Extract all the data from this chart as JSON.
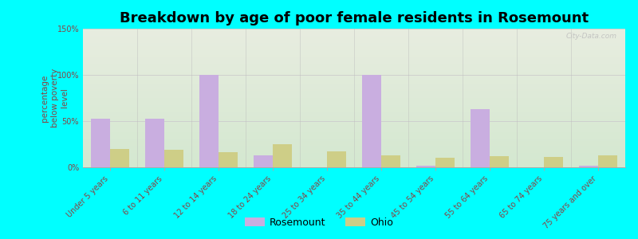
{
  "title": "Breakdown by age of poor female residents in Rosemount",
  "ylabel": "percentage\nbelow poverty\nlevel",
  "categories": [
    "Under 5 years",
    "6 to 11 years",
    "12 to 14 years",
    "18 to 24 years",
    "25 to 34 years",
    "35 to 44 years",
    "45 to 54 years",
    "55 to 64 years",
    "65 to 74 years",
    "75 years and over"
  ],
  "rosemount_values": [
    53,
    53,
    100,
    13,
    0,
    100,
    2,
    63,
    0,
    2
  ],
  "ohio_values": [
    20,
    19,
    16,
    25,
    17,
    13,
    10,
    12,
    11,
    13
  ],
  "rosemount_color": "#c9aee0",
  "ohio_color": "#cece87",
  "ylim": [
    0,
    150
  ],
  "yticks": [
    0,
    50,
    100,
    150
  ],
  "ytick_labels": [
    "0%",
    "50%",
    "100%",
    "150%"
  ],
  "bar_width": 0.35,
  "background_color": "#00ffff",
  "plot_bg_top": "#e8ede0",
  "plot_bg_bottom": "#d4e8d0",
  "title_fontsize": 13,
  "axis_label_fontsize": 7.5,
  "tick_label_fontsize": 7,
  "legend_fontsize": 9,
  "tick_color": "#884444",
  "watermark": "City-Data.com"
}
